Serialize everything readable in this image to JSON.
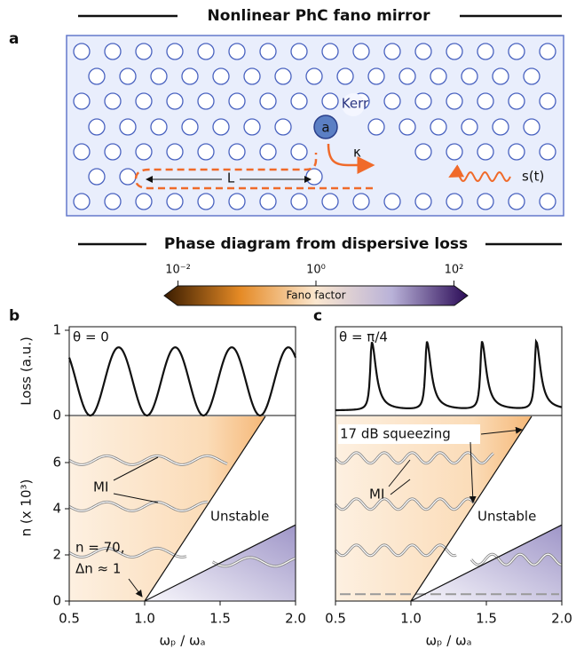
{
  "panel_a": {
    "label": "a",
    "title": "Nonlinear PhC fano mirror",
    "cavity": "a",
    "kerr": "Kerr",
    "kappa": "κ",
    "length": "L",
    "signal": "s(t)"
  },
  "colorbar": {
    "title": "Phase diagram from dispersive loss",
    "label": "Fano factor",
    "lim": [
      -2.2,
      2.2
    ],
    "ticks": [
      {
        "value": -2,
        "label": "10⁻²"
      },
      {
        "value": 0,
        "label": "10⁰"
      },
      {
        "value": 2,
        "label": "10²"
      }
    ]
  },
  "panels": [
    {
      "label": "b",
      "theta": "θ = 0",
      "loss_label": "Loss (a.u.)",
      "n_label": "n (x 10³)",
      "xlabel": "ωₚ / ωₐ",
      "xlim": [
        0.5,
        2.0
      ],
      "xticks": [
        0.5,
        {
          "value": 1.0,
          "label": "1.0"
        },
        1.5,
        {
          "value": 2.0,
          "label": "2.0"
        }
      ],
      "loss_ylim": [
        0,
        1
      ],
      "loss_yticks": [
        0,
        1
      ],
      "n_ylim": [
        0,
        8
      ],
      "n_yticks": [
        0,
        2,
        4,
        6
      ],
      "annotations": [
        "MI",
        "Unstable",
        "n = 70,",
        "Δn ≈ 1"
      ]
    },
    {
      "label": "c",
      "theta": "θ = π/4",
      "xlabel": "ωₚ / ωₐ",
      "xlim": [
        0.5,
        2.0
      ],
      "xticks": [
        0.5,
        {
          "value": 1.0,
          "label": "1.0"
        },
        1.5,
        {
          "value": 2.0,
          "label": "2.0"
        }
      ],
      "loss_ylim": [
        0,
        1
      ],
      "n_ylim": [
        0,
        8
      ],
      "annotations": [
        "17 dB squeezing",
        "MI",
        "Unstable"
      ]
    }
  ]
}
